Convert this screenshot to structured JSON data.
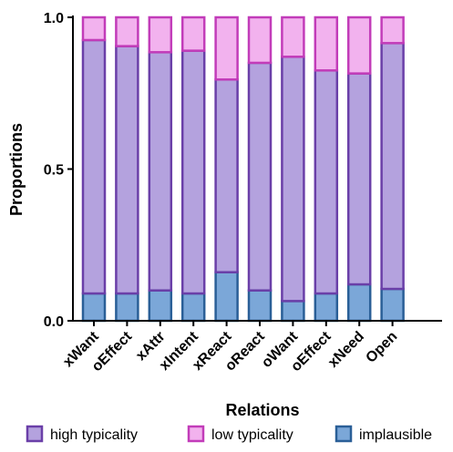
{
  "chart_data": {
    "type": "bar",
    "stacked": true,
    "categories": [
      "xWant",
      "oEffect",
      "xAttr",
      "xIntent",
      "xReact",
      "oReact",
      "oWant",
      "oEffect",
      "xNeed",
      "Open"
    ],
    "series": [
      {
        "name": "implausible",
        "values": [
          0.09,
          0.09,
          0.1,
          0.09,
          0.16,
          0.1,
          0.065,
          0.09,
          0.12,
          0.105
        ],
        "fill": "#7ba7d8",
        "stroke": "#2a5f97"
      },
      {
        "name": "high typicality",
        "values": [
          0.835,
          0.815,
          0.785,
          0.8,
          0.635,
          0.75,
          0.805,
          0.735,
          0.695,
          0.81
        ],
        "fill": "#b4a2de",
        "stroke": "#6a3fa8"
      },
      {
        "name": "low typicality",
        "values": [
          0.075,
          0.095,
          0.115,
          0.11,
          0.205,
          0.15,
          0.13,
          0.175,
          0.185,
          0.085
        ],
        "fill": "#f2b2ee",
        "stroke": "#c23cb9"
      }
    ],
    "legend_order": [
      "high typicality",
      "low typicality",
      "implausible"
    ],
    "legend_position": "bottom",
    "ylim": [
      0,
      1
    ],
    "yticks": [
      "0.0",
      "0.5",
      "1.0"
    ],
    "ylabel": "Proportions",
    "xlabel": "Relations",
    "grid": false
  }
}
